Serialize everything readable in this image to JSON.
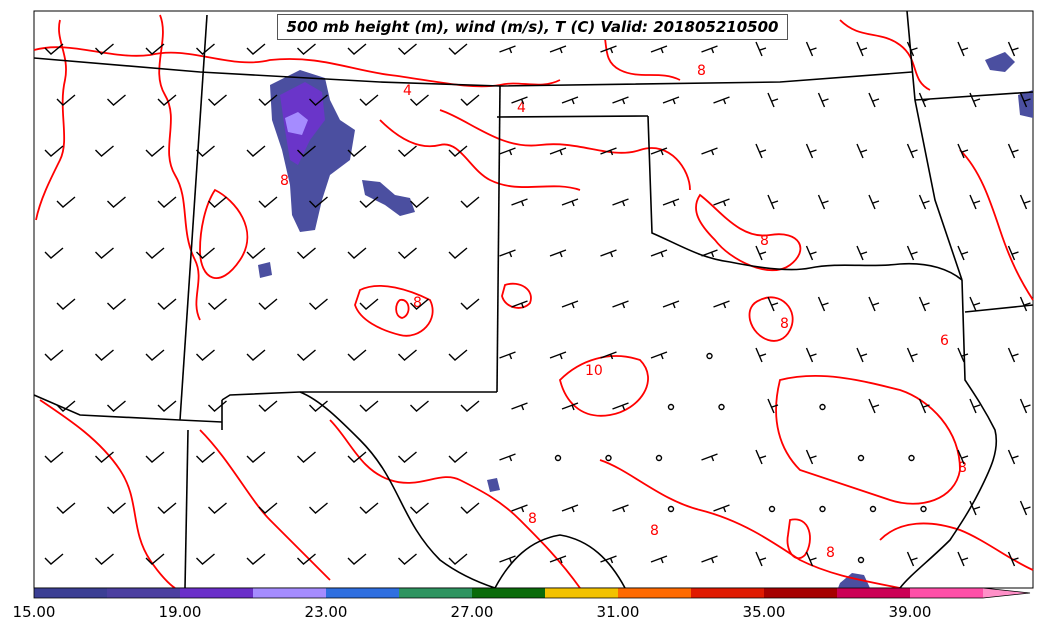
{
  "title": "500 mb height (m), wind (m/s), T (C) Valid: 201805210500",
  "contour_labels": [
    "4",
    "4",
    "8",
    "8",
    "8",
    "8",
    "10",
    "8",
    "8",
    "8",
    "6",
    "8",
    "8"
  ],
  "colorbar": {
    "tick_labels": [
      "15.00",
      "19.00",
      "23.00",
      "27.00",
      "31.00",
      "35.00",
      "39.00"
    ],
    "colors": [
      "#3b3f94",
      "#4b3fa0",
      "#6a2fc9",
      "#a58cff",
      "#2f6fe0",
      "#2e9460",
      "#0a6b0a",
      "#f2c200",
      "#ff6a00",
      "#e01a00",
      "#a60000",
      "#cc0055",
      "#ff4fa8",
      "#ff90c8"
    ]
  },
  "colors": {
    "contour": "#ff0000",
    "boundary": "#000000",
    "barb": "#000000",
    "precip_dark": "#4b4fa0",
    "precip_mid": "#6a35c9",
    "precip_light": "#a58cff"
  }
}
